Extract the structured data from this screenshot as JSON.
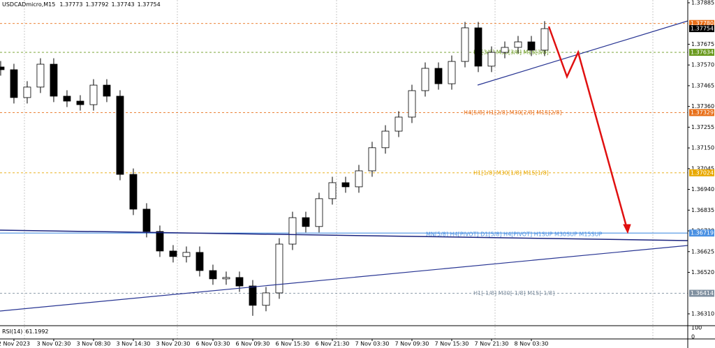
{
  "chart_data": {
    "type": "candlestick",
    "symbol": "USDCADmicro,M15",
    "quote": [
      1.37773,
      1.37792,
      1.37743,
      1.37754
    ],
    "open": [
      1.3756,
      1.37546,
      1.37405,
      1.37458,
      1.37574,
      1.37412,
      1.37387,
      1.37369,
      1.37468,
      1.37412,
      1.37016,
      1.3684,
      1.36727,
      1.36628,
      1.366,
      1.36621,
      1.36529,
      1.36487,
      1.36494,
      1.36451,
      1.36353,
      1.36416,
      1.36663,
      1.36797,
      1.36752,
      1.36893,
      1.36974,
      1.36953,
      1.37034,
      1.37151,
      1.37235,
      1.37306,
      1.3744,
      1.37553,
      1.37475,
      1.37588,
      1.37758,
      1.37564,
      1.37634,
      1.37659,
      1.37687,
      1.37645
    ],
    "high": [
      1.3759,
      1.37576,
      1.37488,
      1.37604,
      1.37604,
      1.37442,
      1.37417,
      1.37498,
      1.37498,
      1.37442,
      1.37046,
      1.3687,
      1.36757,
      1.36658,
      1.36651,
      1.36651,
      1.36559,
      1.36524,
      1.36524,
      1.36481,
      1.36446,
      1.36693,
      1.36827,
      1.36827,
      1.36923,
      1.37004,
      1.37004,
      1.37064,
      1.37181,
      1.37265,
      1.37336,
      1.3747,
      1.37583,
      1.37583,
      1.37618,
      1.37788,
      1.37788,
      1.37664,
      1.37689,
      1.37717,
      1.37717,
      1.37792
    ],
    "low": [
      1.37516,
      1.37375,
      1.37375,
      1.37428,
      1.37382,
      1.37357,
      1.37339,
      1.37339,
      1.37382,
      1.36986,
      1.3681,
      1.36697,
      1.36598,
      1.3657,
      1.3657,
      1.36499,
      1.36457,
      1.36457,
      1.36421,
      1.363,
      1.36323,
      1.36386,
      1.36633,
      1.36722,
      1.36722,
      1.36863,
      1.36923,
      1.36923,
      1.37004,
      1.37121,
      1.37205,
      1.37276,
      1.3741,
      1.37445,
      1.37445,
      1.37558,
      1.37534,
      1.37534,
      1.37604,
      1.37629,
      1.37615,
      1.37615
    ],
    "close": [
      1.37546,
      1.37405,
      1.37458,
      1.37574,
      1.37412,
      1.37387,
      1.37369,
      1.37468,
      1.37412,
      1.37016,
      1.3684,
      1.36727,
      1.36628,
      1.366,
      1.36621,
      1.36529,
      1.36487,
      1.36494,
      1.36451,
      1.36353,
      1.36416,
      1.36663,
      1.36797,
      1.36752,
      1.36893,
      1.36974,
      1.36953,
      1.37034,
      1.37151,
      1.37235,
      1.37306,
      1.3744,
      1.37553,
      1.37475,
      1.37588,
      1.37758,
      1.37564,
      1.37634,
      1.37659,
      1.37687,
      1.37645,
      1.37754
    ],
    "ylim": [
      1.36257,
      1.37899
    ],
    "yticks": [
      1.37885,
      1.37675,
      {
        "value": 1.3757,
        "label": "1.37570"
      },
      1.37465,
      {
        "value": 1.3736,
        "label": "1.37360"
      },
      1.37255,
      {
        "value": 1.3715,
        "label": "1.37150"
      },
      1.37045,
      {
        "value": 1.3694,
        "label": "1.36940"
      },
      1.36835,
      {
        "value": 1.3673,
        "label": "1.36730"
      },
      1.36625,
      {
        "value": 1.3652,
        "label": "1.36520"
      },
      {
        "value": 1.3631,
        "label": "1.36310"
      }
    ],
    "xlim": [
      -0.05,
      51.79
    ],
    "xticks": [
      {
        "value": 1,
        "label": "2 Nov 2023"
      },
      {
        "value": 4,
        "label": "3 Nov 02:30"
      },
      {
        "value": 7,
        "label": "3 Nov 08:30"
      },
      {
        "value": 10,
        "label": "3 Nov 14:30"
      },
      {
        "value": 13,
        "label": "3 Nov 20:30"
      },
      {
        "value": 16,
        "label": "6 Nov 03:30"
      },
      {
        "value": 19,
        "label": "6 Nov 09:30"
      },
      {
        "value": 22,
        "label": "6 Nov 15:30"
      },
      {
        "value": 25,
        "label": "6 Nov 21:30"
      },
      {
        "value": 28,
        "label": "7 Nov 03:30"
      },
      {
        "value": 31,
        "label": "7 Nov 09:30"
      },
      {
        "value": 34,
        "label": "7 Nov 15:30"
      },
      {
        "value": 37,
        "label": "7 Nov 21:30"
      },
      {
        "value": 40,
        "label": "8 Nov 03:30"
      }
    ],
    "levels": {
      "values": [
        1.3778,
        1.37634,
        1.37329,
        1.37024,
        1.36719,
        1.36414
      ],
      "value_labels": [
        "1.37780",
        "1.37634",
        "1.37329",
        "1.37024",
        "1.36719",
        "1.36414"
      ],
      "colors": [
        "#e8701a",
        "#6a9a1f",
        "#e8701a",
        "#e8a800",
        "#4a90e2",
        "#8090a0"
      ],
      "texts": [
        null,
        "H1[3/8] M30[3/8] M15[3/8]",
        "H4[5/8] H1[2/8] M30[2/8] M15[2/8]",
        "H1[1/8] M30[1/8] M15[1/8]",
        "MN[5/8] H4[PIVOT] D1[5/8] H4[PIVOT] H1SUP M30SUP M15SUP",
        "H1[-1/8] M30[-1/8] M15[-1/8]"
      ]
    },
    "rsi": {
      "name": "RSI(14)",
      "value": 61.1992,
      "ylim": [
        0,
        100
      ],
      "yticks": [
        100,
        0
      ]
    }
  }
}
